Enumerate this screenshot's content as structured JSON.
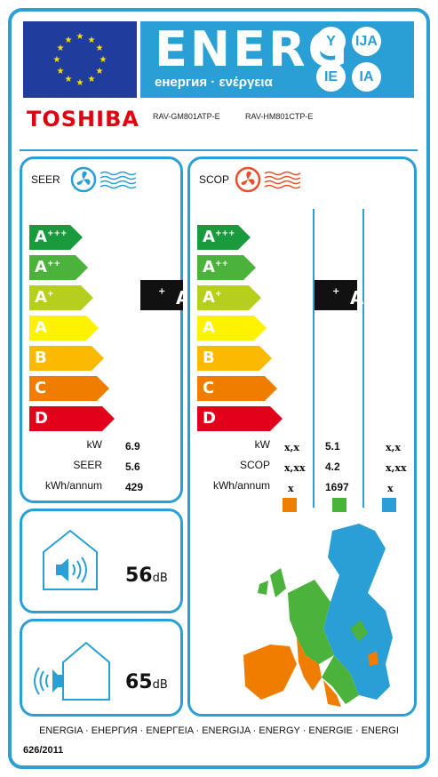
{
  "header": {
    "energ_word": "ENERG",
    "energ_subtitle": "енергия · ενέργεια",
    "lang_badges": [
      "Y",
      "IJA",
      "IE",
      "IA"
    ],
    "eu_flag_icon": "eu-flag-icon"
  },
  "supplier": {
    "brand": "TOSHIBA",
    "model_indoor": "RAV-GM801ATP-E",
    "model_outdoor": "RAV-HM801CTP-E"
  },
  "seer_panel": {
    "title": "SEER",
    "icon": "cooling-fan-icon",
    "classes": [
      {
        "letter": "A",
        "plus": "+++",
        "color": "#1a9a3d"
      },
      {
        "letter": "A",
        "plus": "++",
        "color": "#4bb33b"
      },
      {
        "letter": "A",
        "plus": "+",
        "color": "#b6cf1e"
      },
      {
        "letter": "A",
        "plus": "",
        "color": "#fff200"
      },
      {
        "letter": "B",
        "plus": "",
        "color": "#fbb900"
      },
      {
        "letter": "C",
        "plus": "",
        "color": "#ef7d00"
      },
      {
        "letter": "D",
        "plus": "",
        "color": "#e2001a"
      }
    ],
    "rating": {
      "letter": "A",
      "plus": "+"
    },
    "rows": [
      {
        "label": "kW",
        "value": "6.9"
      },
      {
        "label": "SEER",
        "value": "5.6"
      },
      {
        "label": "kWh/annum",
        "value": "429"
      }
    ]
  },
  "scop_panel": {
    "title": "SCOP",
    "icon": "heating-fan-icon",
    "classes": [
      {
        "letter": "A",
        "plus": "+++",
        "color": "#1a9a3d"
      },
      {
        "letter": "A",
        "plus": "++",
        "color": "#4bb33b"
      },
      {
        "letter": "A",
        "plus": "+",
        "color": "#b6cf1e"
      },
      {
        "letter": "A",
        "plus": "",
        "color": "#fff200"
      },
      {
        "letter": "B",
        "plus": "",
        "color": "#fbb900"
      },
      {
        "letter": "C",
        "plus": "",
        "color": "#ef7d00"
      },
      {
        "letter": "D",
        "plus": "",
        "color": "#e2001a"
      }
    ],
    "rating": {
      "letter": "A",
      "plus": "+"
    },
    "rows": [
      {
        "label": "kW",
        "warmer": "x,x",
        "average": "5.1",
        "colder": "x,x"
      },
      {
        "label": "SCOP",
        "warmer": "x,xx",
        "average": "4.2",
        "colder": "x,xx"
      },
      {
        "label": "kWh/annum",
        "warmer": "x",
        "average": "1697",
        "colder": "x"
      }
    ],
    "zone_colors": [
      "#ef7d00",
      "#4bb33b",
      "#2a9fd6"
    ],
    "map_icon": "europe-climate-zones-map"
  },
  "noise": {
    "indoor": {
      "value": "56",
      "unit": "dB",
      "icon": "indoor-noise-icon"
    },
    "outdoor": {
      "value": "65",
      "unit": "dB",
      "icon": "outdoor-noise-icon"
    }
  },
  "footer": {
    "languages": "ENERGIA · ЕНЕРГИЯ · ΕΝΕΡΓΕΙΑ · ENERGIJA · ENERGY · ENERGIE · ENERGI",
    "regulation": "626/2011"
  }
}
